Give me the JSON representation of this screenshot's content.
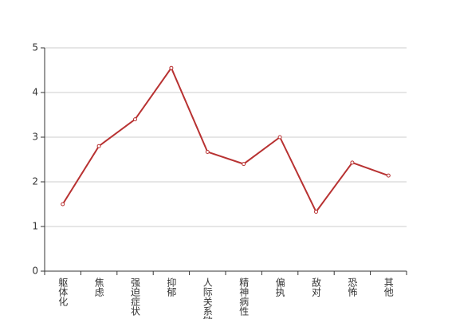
{
  "chart_data": {
    "type": "line",
    "categories": [
      "躯体化",
      "焦虑",
      "强迫症状",
      "抑郁",
      "人际关系敏感",
      "精神病性",
      "偏执",
      "敌对",
      "恐怖",
      "其他"
    ],
    "series": [
      {
        "name": null,
        "color": "#b83232",
        "values": [
          1.5,
          2.8,
          3.4,
          4.55,
          2.67,
          2.4,
          3.0,
          1.33,
          2.43,
          2.14
        ]
      }
    ],
    "ylim": [
      0,
      5
    ],
    "yticks": [
      0,
      1,
      2,
      3,
      4,
      5
    ],
    "grid": true
  }
}
